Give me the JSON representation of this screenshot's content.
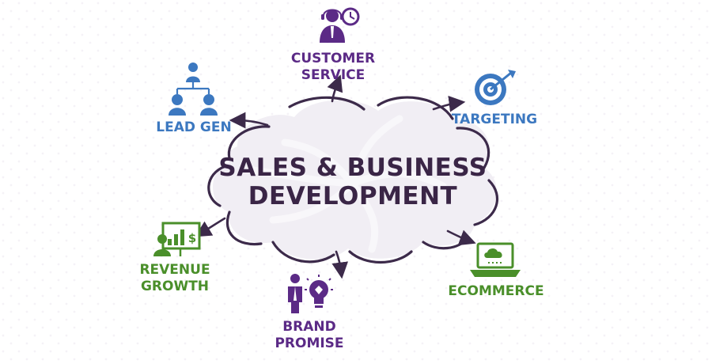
{
  "colors": {
    "background": "#ffffff",
    "cloud_outline": "#3c2a4a",
    "cloud_fill": "#f1eef4",
    "center_text": "#3a2546",
    "purple": "#5b2a86",
    "blue": "#3c78c0",
    "green": "#4a8f2a",
    "bg_dots": "#ece8f0"
  },
  "center": {
    "line1": "SALES & BUSINESS",
    "line2": "DEVELOPMENT"
  },
  "nodes": {
    "customer_service": {
      "line1": "CUSTOMER",
      "line2": "SERVICE",
      "icon": "support-agent-clock-icon",
      "color": "purple"
    },
    "targeting": {
      "line1": "TARGETING",
      "icon": "target-arrow-icon",
      "color": "blue"
    },
    "lead_gen": {
      "line1": "LEAD GEN",
      "icon": "org-chart-people-icon",
      "color": "blue"
    },
    "revenue_growth": {
      "line1": "REVENUE",
      "line2": "GROWTH",
      "icon": "presenter-chart-dollar-icon",
      "color": "green"
    },
    "brand_promise": {
      "line1": "BRAND",
      "line2": "PROMISE",
      "icon": "person-lightbulb-icon",
      "color": "purple"
    },
    "ecommerce": {
      "line1": "ECOMMERCE",
      "icon": "laptop-cloud-icon",
      "color": "green"
    }
  }
}
